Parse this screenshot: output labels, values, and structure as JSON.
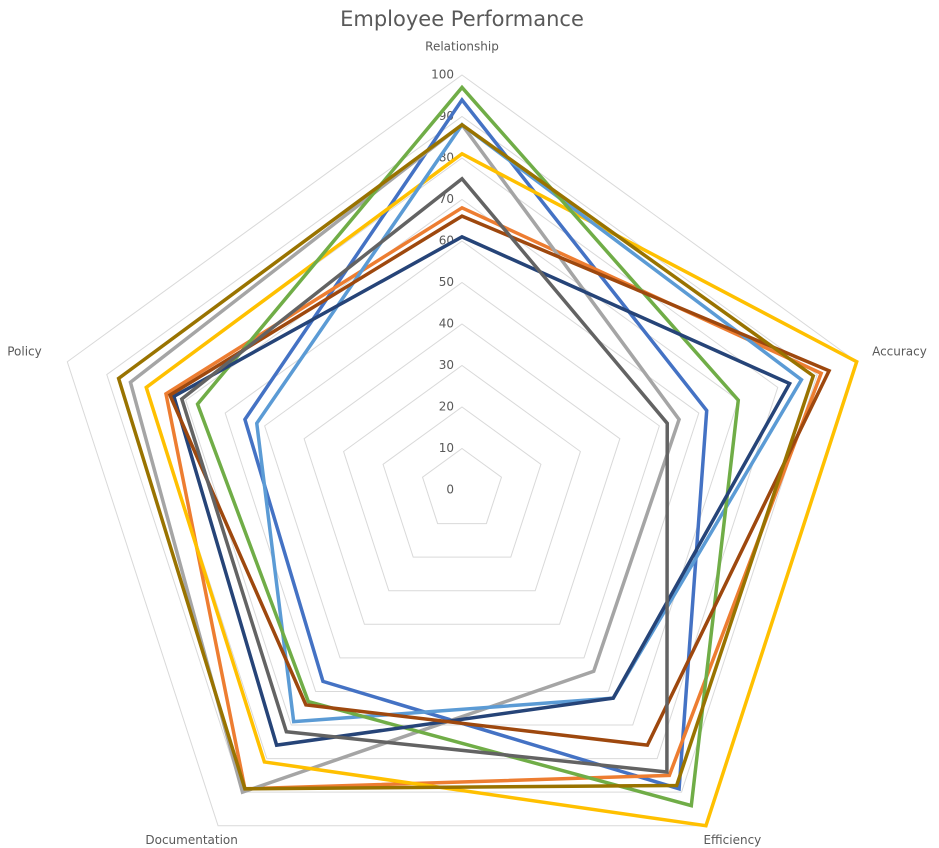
{
  "chart_data": {
    "type": "radar",
    "title": "Employee Performance",
    "categories": [
      "Relationship",
      "Accuracy",
      "Efficiency",
      "Documentation",
      "Policy"
    ],
    "ylim": [
      0,
      100
    ],
    "yticks": [
      0,
      10,
      20,
      30,
      40,
      50,
      60,
      70,
      80,
      90,
      100
    ],
    "grid": true,
    "series": [
      {
        "color": "#4472c4",
        "values": [
          94,
          62,
          89,
          57,
          55
        ]
      },
      {
        "color": "#ed7d31",
        "values": [
          68,
          91,
          85,
          89,
          75
        ]
      },
      {
        "color": "#a5a5a5",
        "values": [
          88,
          55,
          54,
          90,
          84
        ]
      },
      {
        "color": "#ffc000",
        "values": [
          81,
          100,
          100,
          81,
          80
        ]
      },
      {
        "color": "#5b9bd5",
        "values": [
          88,
          86,
          62,
          69,
          52
        ]
      },
      {
        "color": "#70ad47",
        "values": [
          97,
          70,
          94,
          63,
          67
        ]
      },
      {
        "color": "#264478",
        "values": [
          61,
          83,
          62,
          76,
          73
        ]
      },
      {
        "color": "#9e480e",
        "values": [
          66,
          93,
          76,
          64,
          74
        ]
      },
      {
        "color": "#636363",
        "values": [
          75,
          52,
          84,
          72,
          71
        ]
      },
      {
        "color": "#997300",
        "values": [
          88,
          89,
          88,
          89,
          87
        ]
      }
    ]
  }
}
